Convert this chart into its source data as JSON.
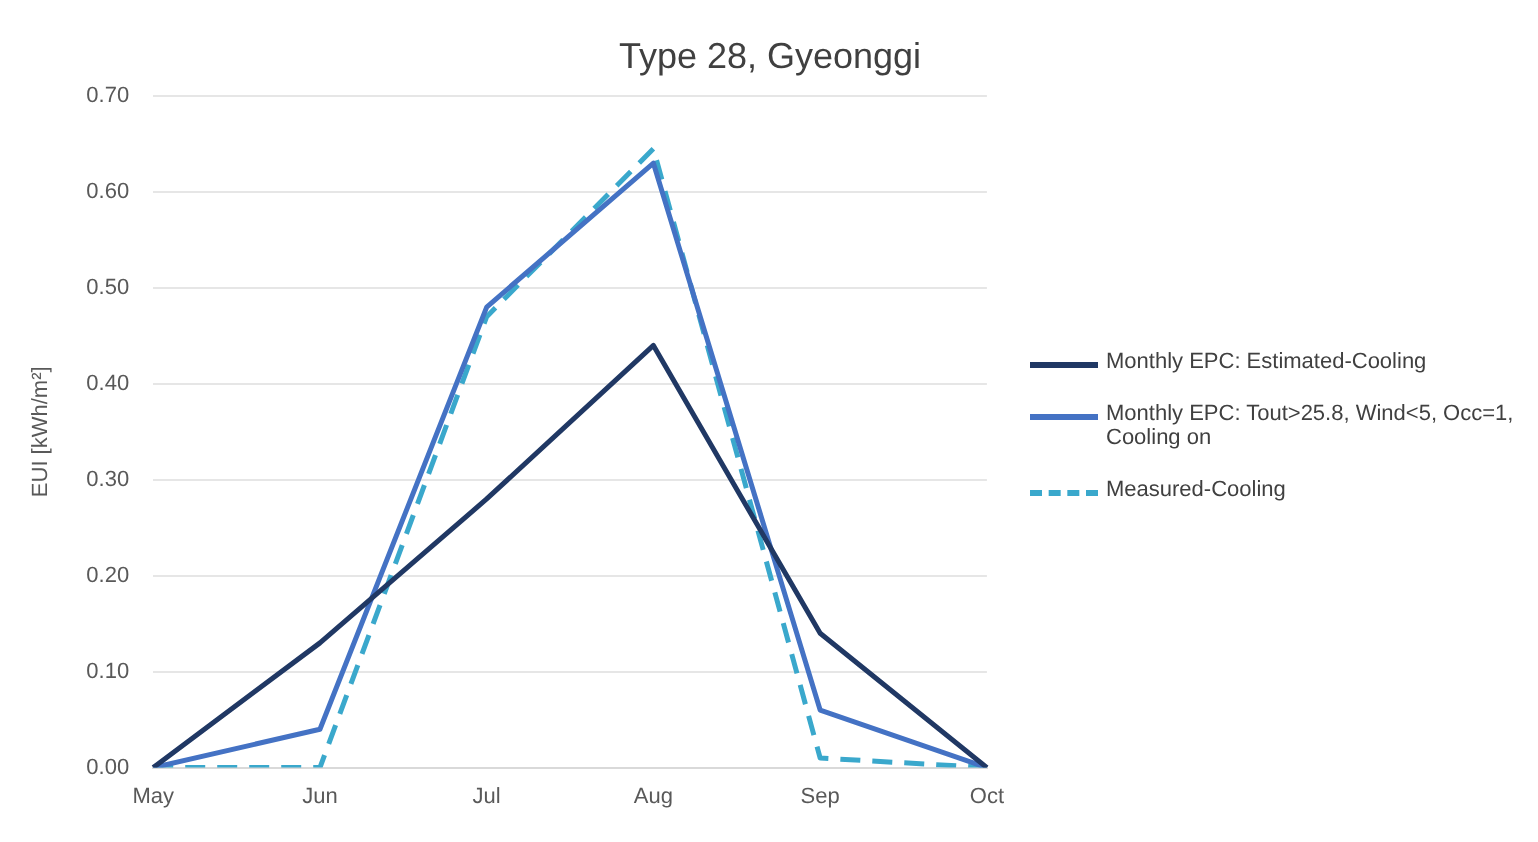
{
  "chart_data": {
    "type": "line",
    "title": "Type 28, Gyeonggi",
    "ylabel": "EUI [kWh/m²]",
    "categories": [
      "May",
      "Jun",
      "Jul",
      "Aug",
      "Sep",
      "Oct"
    ],
    "series": [
      {
        "name": "Monthly EPC: Estimated-Cooling",
        "color": "#203864",
        "values": [
          0,
          0.13,
          0.28,
          0.44,
          0.14,
          0
        ]
      },
      {
        "name": "Monthly EPC: Tout>25.8, Wind<5, Occ=1, Cooling on",
        "color": "#4472c4",
        "values": [
          0,
          0.04,
          0.48,
          0.63,
          0.06,
          0
        ]
      },
      {
        "name": "Measured-Cooling",
        "color": "#3aa8cc",
        "line_style": "dashed",
        "values": [
          0,
          0,
          0.47,
          0.645,
          0.01,
          0
        ]
      }
    ],
    "ylim": [
      0,
      0.7
    ],
    "yticks": [
      {
        "value": 0,
        "label": "0.00"
      },
      {
        "value": 0.1,
        "label": "0.10"
      },
      {
        "value": 0.2,
        "label": "0.20"
      },
      {
        "value": 0.3,
        "label": "0.30"
      },
      {
        "value": 0.4,
        "label": "0.40"
      },
      {
        "value": 0.5,
        "label": "0.50"
      },
      {
        "value": 0.6,
        "label": "0.60"
      },
      {
        "value": 0.7,
        "label": "0.70"
      }
    ],
    "grid": "y",
    "legend": "right",
    "marker": "none"
  }
}
